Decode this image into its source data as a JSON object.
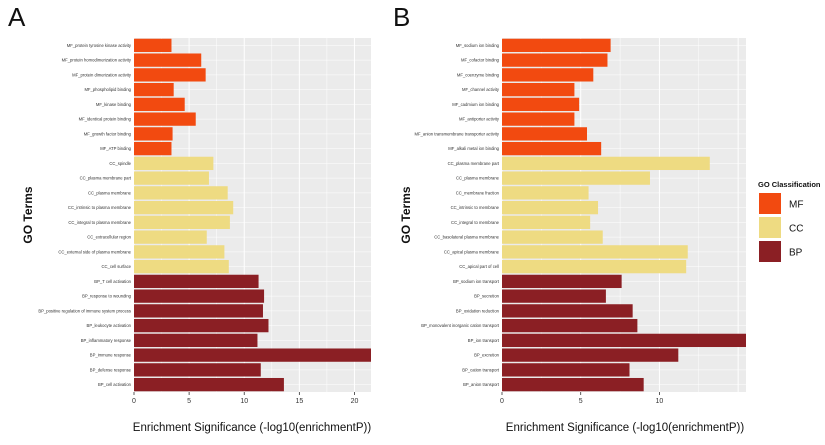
{
  "colors": {
    "MF": "#f24a10",
    "CC": "#eedb82",
    "BP": "#8b1f24",
    "panel_bg": "#ebebeb",
    "grid": "#ffffff"
  },
  "legend": {
    "title": "GO Classification",
    "items": [
      {
        "key": "MF",
        "label": "MF"
      },
      {
        "key": "CC",
        "label": "CC"
      },
      {
        "key": "BP",
        "label": "BP"
      }
    ]
  },
  "chart_data": [
    {
      "panel": "A",
      "type": "bar",
      "orientation": "horizontal",
      "ylabel": "GO Terms",
      "xlabel": "Enrichment Significance (-log10(enrichmentP))",
      "xlim": [
        0,
        21.5
      ],
      "xticks": [
        0,
        5,
        10,
        15,
        20
      ],
      "categories": [
        "MF_protein tyrosine kinase activity",
        "MF_protein homodimerization activity",
        "MF_protein dimerization activity",
        "MF_phospholipid binding",
        "MF_kinase binding",
        "MF_identical protein binding",
        "MF_growth factor binding",
        "MF_ATP binding",
        "CC_spindle",
        "CC_plasma membrane part",
        "CC_plasma membrane",
        "CC_intrinsic to plasma membrane",
        "CC_integral to plasma membrane",
        "CC_extracellular region",
        "CC_external side of plasma membrane",
        "CC_cell surface",
        "BP_T cell activation",
        "BP_response to wounding",
        "BP_positive regulation of immune system process",
        "BP_leukocyte activation",
        "BP_inflammatory response",
        "BP_immune response",
        "BP_defense response",
        "BP_cell activation"
      ],
      "classes": [
        "MF",
        "MF",
        "MF",
        "MF",
        "MF",
        "MF",
        "MF",
        "MF",
        "CC",
        "CC",
        "CC",
        "CC",
        "CC",
        "CC",
        "CC",
        "CC",
        "BP",
        "BP",
        "BP",
        "BP",
        "BP",
        "BP",
        "BP",
        "BP"
      ],
      "values": [
        3.4,
        6.1,
        6.5,
        3.6,
        4.6,
        5.6,
        3.5,
        3.4,
        7.2,
        6.8,
        8.5,
        9.0,
        8.7,
        6.6,
        8.2,
        8.6,
        11.3,
        11.8,
        11.7,
        12.2,
        11.2,
        21.5,
        11.5,
        13.6
      ]
    },
    {
      "panel": "B",
      "type": "bar",
      "orientation": "horizontal",
      "ylabel": "GO Terms",
      "xlabel": "Enrichment Significance (-log10(enrichmentP))",
      "xlim": [
        0,
        15.5
      ],
      "xticks": [
        0,
        5,
        10
      ],
      "categories": [
        "MF_sodium ion binding",
        "MF_cofactor binding",
        "MF_coenzyme binding",
        "MF_channel activity",
        "MF_cadmium ion binding",
        "MF_antiporter activity",
        "MF_anion transmembrane transporter activity",
        "MF_alkali metal ion binding",
        "CC_plasma membrane part",
        "CC_plasma membrane",
        "CC_membrane fraction",
        "CC_intrinsic to membrane",
        "CC_integral to membrane",
        "CC_basolateral plasma membrane",
        "CC_apical plasma membrane",
        "CC_apical part of cell",
        "BP_sodium ion transport",
        "BP_secretion",
        "BP_oxidation reduction",
        "BP_monovalent inorganic cation transport",
        "BP_ion transport",
        "BP_excretion",
        "BP_cation transport",
        "BP_anion transport"
      ],
      "classes": [
        "MF",
        "MF",
        "MF",
        "MF",
        "MF",
        "MF",
        "MF",
        "MF",
        "CC",
        "CC",
        "CC",
        "CC",
        "CC",
        "CC",
        "CC",
        "CC",
        "BP",
        "BP",
        "BP",
        "BP",
        "BP",
        "BP",
        "BP",
        "BP"
      ],
      "values": [
        6.9,
        6.7,
        5.8,
        4.6,
        4.9,
        4.6,
        5.4,
        6.3,
        13.2,
        9.4,
        5.5,
        6.1,
        5.6,
        6.4,
        11.8,
        11.7,
        7.6,
        6.6,
        8.3,
        8.6,
        15.5,
        11.2,
        8.1,
        9.0
      ]
    }
  ]
}
